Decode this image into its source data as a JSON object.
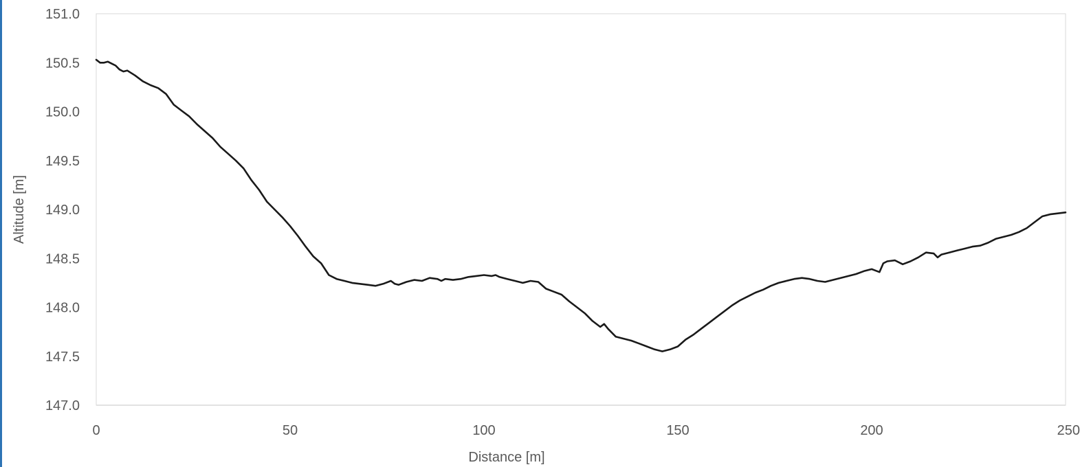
{
  "chart_data": {
    "type": "line",
    "xlabel": "Distance [m]",
    "ylabel": "Altitude [m]",
    "xlim": [
      0,
      250
    ],
    "ylim": [
      147.0,
      151.0
    ],
    "x_ticks": [
      "0",
      "50",
      "100",
      "150",
      "200",
      "250"
    ],
    "y_ticks": [
      "147.0",
      "147.5",
      "148.0",
      "148.5",
      "149.0",
      "149.5",
      "150.0",
      "150.5",
      "151.0"
    ],
    "grid": false,
    "legend": "none",
    "line_color": "#1a1a1a",
    "series": [
      {
        "x": [
          0,
          1,
          2,
          3,
          4,
          5,
          6,
          7,
          8,
          10,
          12,
          14,
          16,
          18,
          20,
          22,
          24,
          26,
          28,
          30,
          32,
          34,
          36,
          38,
          40,
          42,
          44,
          46,
          48,
          50,
          52,
          54,
          56,
          58,
          60,
          62,
          64,
          66,
          68,
          70,
          72,
          74,
          76,
          77,
          78,
          80,
          82,
          84,
          86,
          88,
          89,
          90,
          92,
          94,
          96,
          98,
          100,
          102,
          103,
          104,
          106,
          108,
          110,
          112,
          114,
          116,
          118,
          120,
          122,
          124,
          126,
          128,
          130,
          131,
          132,
          134,
          136,
          138,
          140,
          142,
          144,
          146,
          148,
          150,
          152,
          154,
          156,
          158,
          160,
          162,
          164,
          166,
          168,
          170,
          172,
          174,
          176,
          178,
          180,
          182,
          184,
          186,
          188,
          190,
          192,
          194,
          196,
          198,
          200,
          202,
          203,
          204,
          206,
          208,
          210,
          212,
          214,
          216,
          217,
          218,
          220,
          222,
          224,
          226,
          228,
          230,
          232,
          234,
          236,
          238,
          240,
          242,
          244,
          246,
          248,
          250
        ],
        "y": [
          150.53,
          150.5,
          150.5,
          150.51,
          150.49,
          150.47,
          150.43,
          150.41,
          150.42,
          150.37,
          150.31,
          150.27,
          150.24,
          150.18,
          150.07,
          150.01,
          149.95,
          149.87,
          149.8,
          149.73,
          149.64,
          149.57,
          149.5,
          149.42,
          149.3,
          149.2,
          149.08,
          149.0,
          148.92,
          148.83,
          148.73,
          148.62,
          148.52,
          148.45,
          148.33,
          148.29,
          148.27,
          148.25,
          148.24,
          148.23,
          148.22,
          148.24,
          148.27,
          148.24,
          148.23,
          148.26,
          148.28,
          148.27,
          148.3,
          148.29,
          148.27,
          148.29,
          148.28,
          148.29,
          148.31,
          148.32,
          148.33,
          148.32,
          148.33,
          148.31,
          148.29,
          148.27,
          148.25,
          148.27,
          148.26,
          148.19,
          148.16,
          148.13,
          148.06,
          148.0,
          147.94,
          147.86,
          147.8,
          147.83,
          147.78,
          147.7,
          147.68,
          147.66,
          147.63,
          147.6,
          147.57,
          147.55,
          147.57,
          147.6,
          147.67,
          147.72,
          147.78,
          147.84,
          147.9,
          147.96,
          148.02,
          148.07,
          148.11,
          148.15,
          148.18,
          148.22,
          148.25,
          148.27,
          148.29,
          148.3,
          148.29,
          148.27,
          148.26,
          148.28,
          148.3,
          148.32,
          148.34,
          148.37,
          148.39,
          148.36,
          148.45,
          148.47,
          148.48,
          148.44,
          148.47,
          148.51,
          148.56,
          148.55,
          148.51,
          148.54,
          148.56,
          148.58,
          148.6,
          148.62,
          148.63,
          148.66,
          148.7,
          148.72,
          148.74,
          148.77,
          148.81,
          148.87,
          148.93,
          148.95,
          148.96,
          148.97
        ]
      }
    ]
  }
}
